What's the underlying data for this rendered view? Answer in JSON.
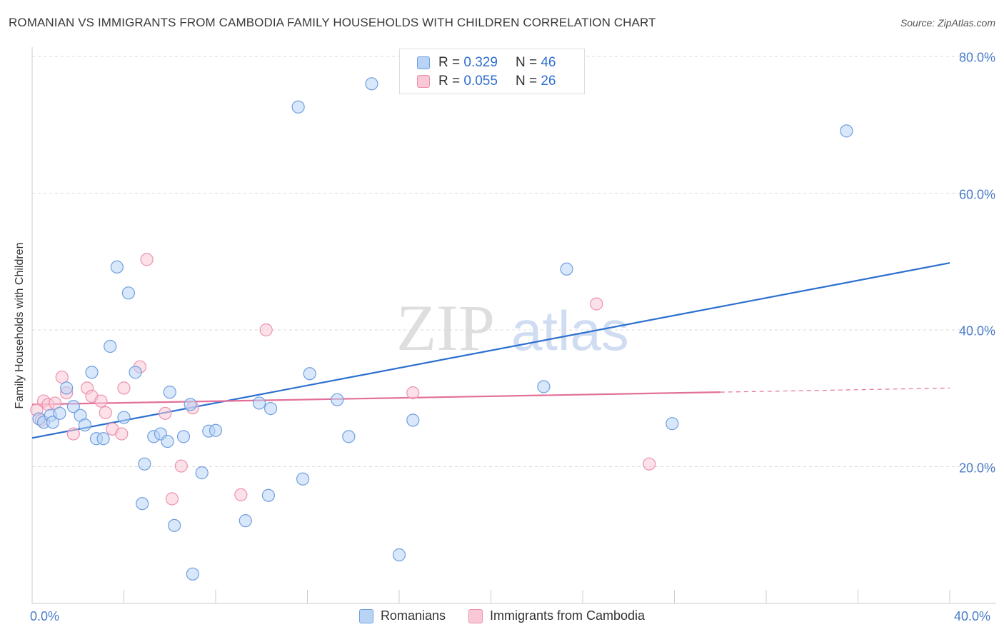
{
  "title": "ROMANIAN VS IMMIGRANTS FROM CAMBODIA FAMILY HOUSEHOLDS WITH CHILDREN CORRELATION CHART",
  "source": "Source: ZipAtlas.com",
  "watermark": {
    "zip": "ZIP",
    "atlas": "atlas"
  },
  "legend": {
    "rows": [
      {
        "r_label": "R =",
        "r_value": "0.329",
        "n_label": "N =",
        "n_value": "46"
      },
      {
        "r_label": "R =",
        "r_value": "0.055",
        "n_label": "N =",
        "n_value": "26"
      }
    ]
  },
  "bottom_legend": [
    "Romanians",
    "Immigrants from Cambodia"
  ],
  "colors": {
    "romanians_fill": "#b9d3f5",
    "romanians_stroke": "#6f9fe0",
    "romanians_line": "#2b6fcf",
    "cambodia_fill": "#f9c8d6",
    "cambodia_stroke": "#ec91ae",
    "cambodia_line": "#e2709a",
    "grid": "#d9d9d9",
    "tick_text": "#4a7cc9"
  },
  "chart_data": {
    "type": "scatter",
    "title": "ROMANIAN VS IMMIGRANTS FROM CAMBODIA FAMILY HOUSEHOLDS WITH CHILDREN CORRELATION CHART",
    "xlabel": "",
    "ylabel": "Family Households with Children",
    "xlim": [
      0,
      40
    ],
    "ylim": [
      0,
      80
    ],
    "x_tick_labels": [
      "0.0%",
      "40.0%"
    ],
    "y_ticks": [
      20,
      40,
      60,
      80
    ],
    "y_tick_labels": [
      "20.0%",
      "40.0%",
      "60.0%",
      "80.0%"
    ],
    "series": [
      {
        "name": "Romanians",
        "r": 0.329,
        "n": 46,
        "points": [
          [
            0.3,
            27.0
          ],
          [
            0.5,
            26.5
          ],
          [
            0.8,
            27.5
          ],
          [
            0.9,
            26.5
          ],
          [
            1.2,
            27.8
          ],
          [
            1.5,
            31.5
          ],
          [
            1.8,
            28.8
          ],
          [
            2.1,
            27.5
          ],
          [
            2.3,
            26.1
          ],
          [
            2.6,
            33.8
          ],
          [
            2.8,
            24.1
          ],
          [
            3.1,
            24.1
          ],
          [
            3.4,
            37.6
          ],
          [
            3.7,
            49.2
          ],
          [
            4.0,
            27.2
          ],
          [
            4.2,
            45.4
          ],
          [
            4.5,
            33.8
          ],
          [
            4.8,
            14.6
          ],
          [
            4.9,
            20.4
          ],
          [
            5.3,
            24.4
          ],
          [
            5.6,
            24.8
          ],
          [
            5.9,
            23.7
          ],
          [
            6.0,
            30.9
          ],
          [
            6.2,
            11.4
          ],
          [
            6.6,
            24.4
          ],
          [
            6.9,
            29.1
          ],
          [
            7.0,
            4.3
          ],
          [
            7.4,
            19.1
          ],
          [
            7.7,
            25.2
          ],
          [
            8.0,
            25.3
          ],
          [
            9.3,
            12.1
          ],
          [
            9.9,
            29.3
          ],
          [
            10.3,
            15.8
          ],
          [
            10.4,
            28.5
          ],
          [
            11.6,
            72.6
          ],
          [
            11.8,
            18.2
          ],
          [
            12.1,
            33.6
          ],
          [
            13.3,
            29.8
          ],
          [
            13.8,
            24.4
          ],
          [
            14.8,
            76.0
          ],
          [
            16.0,
            7.1
          ],
          [
            16.6,
            26.8
          ],
          [
            22.3,
            31.7
          ],
          [
            23.3,
            48.9
          ],
          [
            27.9,
            26.3
          ],
          [
            35.5,
            69.1
          ]
        ],
        "trend": {
          "x": [
            0,
            40
          ],
          "y": [
            24.2,
            49.8
          ]
        }
      },
      {
        "name": "Immigrants from Cambodia",
        "r": 0.055,
        "n": 26,
        "points": [
          [
            0.2,
            28.3
          ],
          [
            0.4,
            26.8
          ],
          [
            0.5,
            29.6
          ],
          [
            0.7,
            29.1
          ],
          [
            1.0,
            29.3
          ],
          [
            1.3,
            33.1
          ],
          [
            1.5,
            30.8
          ],
          [
            1.8,
            24.8
          ],
          [
            2.4,
            31.5
          ],
          [
            2.6,
            30.3
          ],
          [
            3.0,
            29.6
          ],
          [
            3.2,
            27.9
          ],
          [
            3.5,
            25.5
          ],
          [
            3.9,
            24.8
          ],
          [
            4.0,
            31.5
          ],
          [
            4.7,
            34.6
          ],
          [
            5.8,
            27.8
          ],
          [
            6.1,
            15.3
          ],
          [
            6.5,
            20.1
          ],
          [
            7.0,
            28.6
          ],
          [
            5.0,
            50.3
          ],
          [
            9.1,
            15.9
          ],
          [
            10.2,
            40.0
          ],
          [
            16.6,
            30.8
          ],
          [
            24.6,
            43.8
          ],
          [
            26.9,
            20.4
          ]
        ],
        "trend_solid": {
          "x": [
            0,
            30
          ],
          "y": [
            29.1,
            30.9
          ]
        },
        "trend_dashed": {
          "x": [
            30,
            40
          ],
          "y": [
            30.9,
            31.5
          ]
        }
      }
    ]
  }
}
